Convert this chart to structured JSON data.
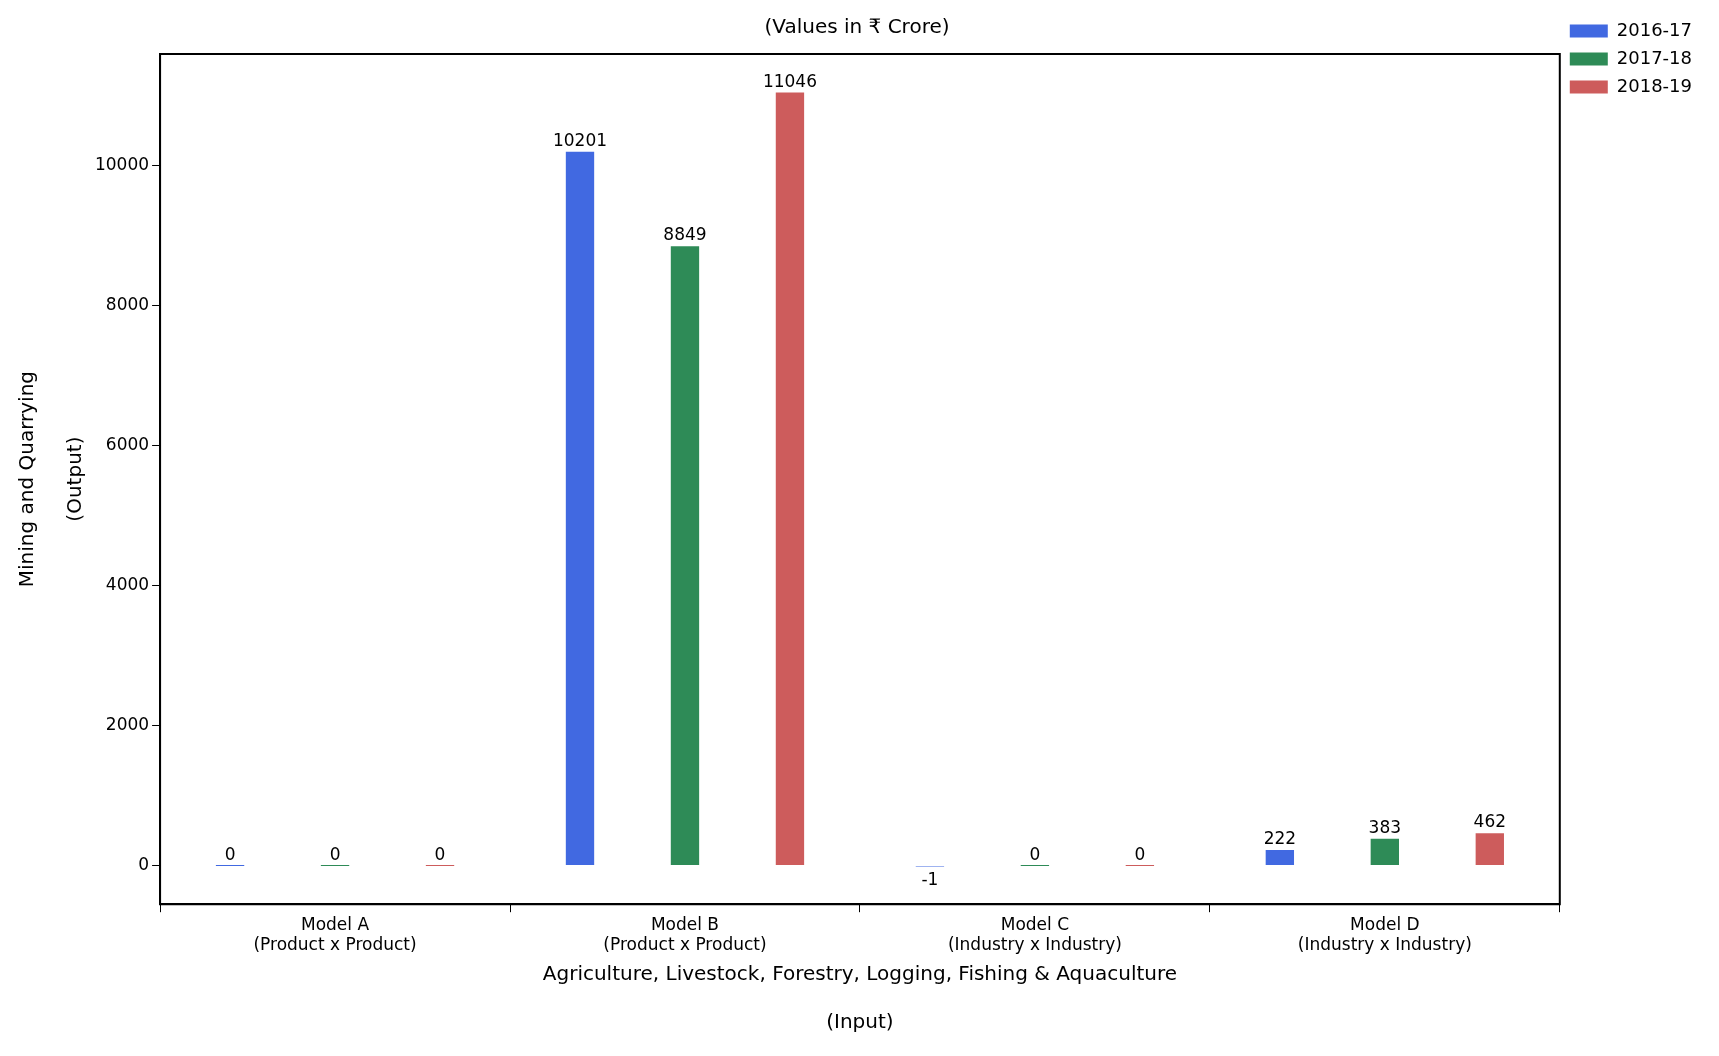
{
  "chart_data": {
    "type": "bar",
    "title": "(Values in ₹ Crore)",
    "xlabel": "Agriculture, Livestock, Forestry, Logging, Fishing & Aquaculture\n\n(Input)",
    "ylabel": "Mining and Quarrying\n\n(Output)",
    "categories": [
      "Model A\n(Product x Product)",
      "Model B\n(Product x Product)",
      "Model C\n(Industry x Industry)",
      "Model D\n(Industry x Industry)"
    ],
    "series": [
      {
        "name": "2016-17",
        "color": "#4169e1",
        "values": [
          0,
          10201,
          -1,
          222
        ]
      },
      {
        "name": "2017-18",
        "color": "#2e8b57",
        "values": [
          0,
          8849,
          0,
          383
        ]
      },
      {
        "name": "2018-19",
        "color": "#cd5c5c",
        "values": [
          0,
          11046,
          0,
          462
        ]
      }
    ],
    "ylim": [
      -553,
      11598
    ],
    "yticks": [
      0,
      2000,
      4000,
      6000,
      8000,
      10000
    ],
    "data_labels": true,
    "grid": false,
    "legend": "top right"
  }
}
